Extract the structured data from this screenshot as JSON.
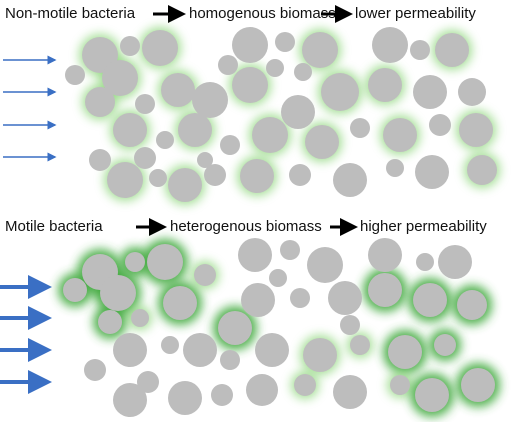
{
  "panels": [
    {
      "left": "Non-motile bacteria",
      "middle": "homogenous biomass",
      "right": "lower permeability"
    },
    {
      "left": "Motile bacteria",
      "middle": "heterogenous biomass",
      "right": "higher permeability"
    }
  ]
}
